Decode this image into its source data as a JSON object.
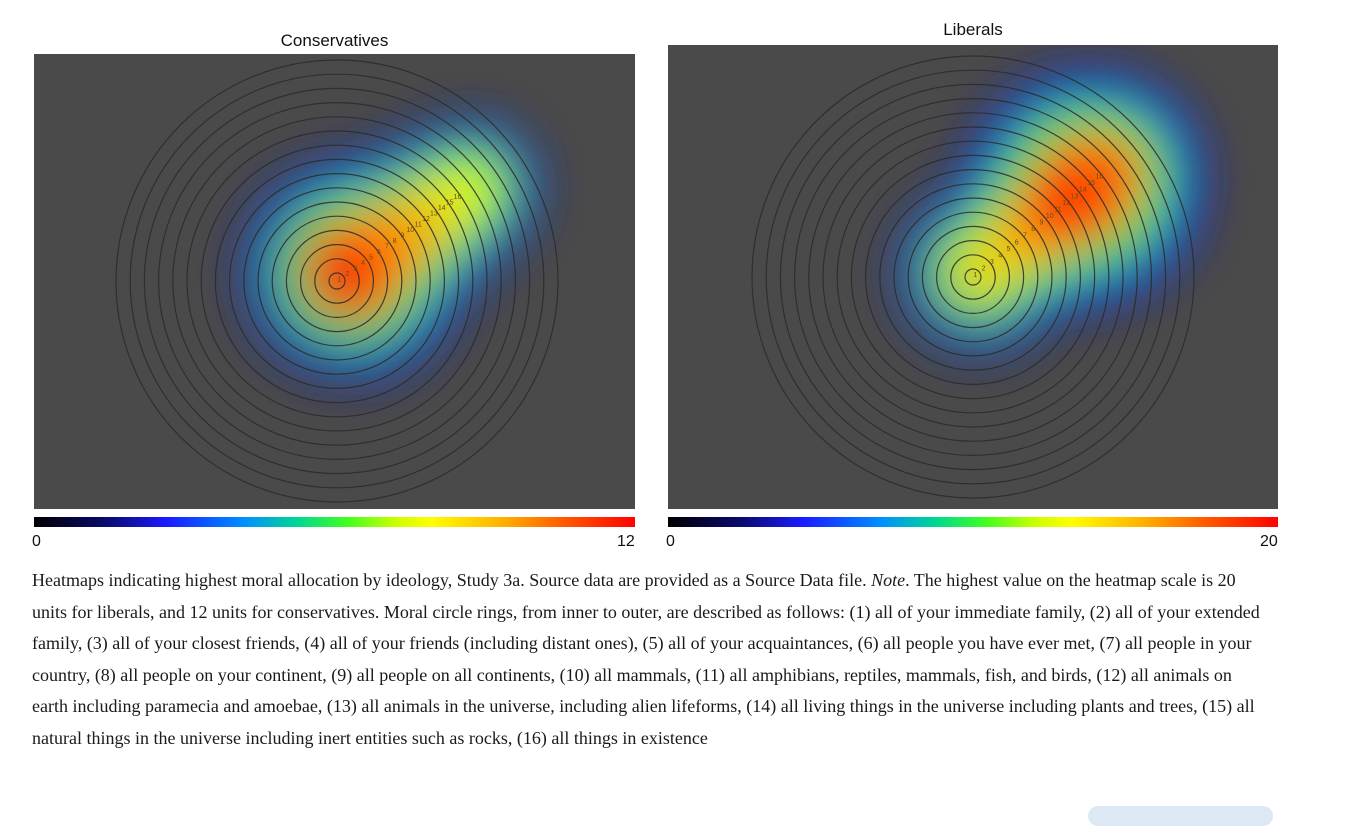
{
  "chart_data": [
    {
      "type": "heatmap",
      "title": "Conservatives",
      "scale": {
        "min": 0,
        "max": 12
      },
      "colormap": "jet",
      "ring_labels": [
        "1",
        "2",
        "3",
        "4",
        "5",
        "6",
        "7",
        "8",
        "9",
        "10",
        "11",
        "12",
        "13",
        "14",
        "15",
        "16"
      ],
      "hotspots": [
        {
          "ring": 2,
          "value": 12
        },
        {
          "ring": 5,
          "value": 9
        },
        {
          "ring": 9,
          "value": 7
        },
        {
          "ring": 13,
          "value": 5
        },
        {
          "ring": 16,
          "value": 3
        }
      ]
    },
    {
      "type": "heatmap",
      "title": "Liberals",
      "scale": {
        "min": 0,
        "max": 20
      },
      "colormap": "jet",
      "ring_labels": [
        "1",
        "2",
        "3",
        "4",
        "5",
        "6",
        "7",
        "8",
        "9",
        "10",
        "11",
        "12",
        "13",
        "14",
        "15",
        "16"
      ],
      "hotspots": [
        {
          "ring": 1,
          "value": 8
        },
        {
          "ring": 6,
          "value": 10
        },
        {
          "ring": 10,
          "value": 14
        },
        {
          "ring": 14,
          "value": 20
        },
        {
          "ring": 16,
          "value": 15
        }
      ]
    }
  ],
  "caption": {
    "part1": "Heatmaps indicating highest moral allocation by ideology, Study 3a. Source data are provided as a Source Data file. ",
    "note_label": "Note",
    "part2": ". The highest value on the heatmap scale is 20 units for liberals, and 12 units for conservatives. Moral circle rings, from inner to outer, are described as follows: (1) all of your immediate family, (2) all of your extended family, (3) all of your closest friends, (4) all of your friends (including distant ones), (5) all of your acquaintances, (6) all people you have ever met, (7) all people in your country, (8) all people on your continent, (9) all people on all continents, (10) all mammals, (11) all amphibians, reptiles, mammals, fish, and birds, (12) all animals on earth including paramecia and amoebae, (13) all animals in the universe, including alien lifeforms, (14) all living things in the universe including plants and trees, (15) all natural things in the universe including inert entities such as rocks, (16) all things in existence"
  },
  "colors": {
    "heatmap_background": "#4a4a4a",
    "ring_stroke": "#2a2a2a"
  }
}
